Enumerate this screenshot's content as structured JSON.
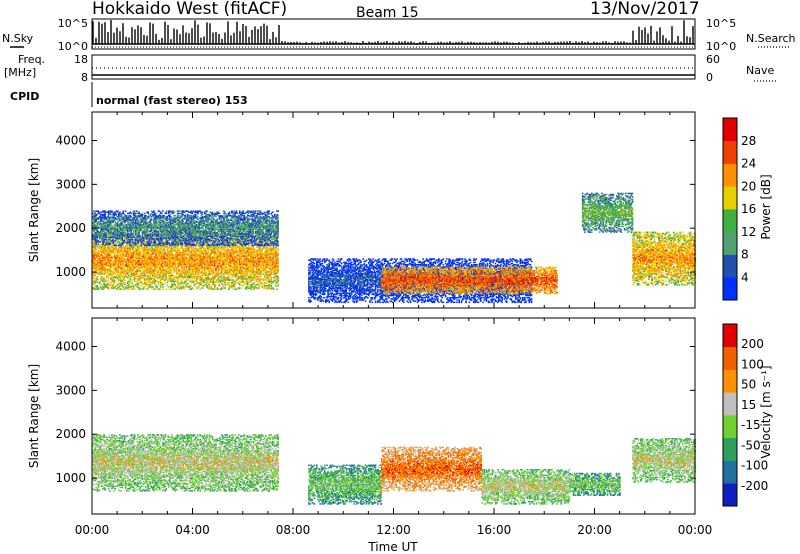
{
  "header": {
    "title": "Hokkaido West (fitACF)",
    "beam": "Beam 15",
    "date": "13/Nov/2017"
  },
  "top_panels": {
    "nsky_label": "N.Sky",
    "nsky_ticks": [
      "10^5",
      "10^0"
    ],
    "nsearch_label": "N.Search",
    "nsearch_ticks": [
      "10^5",
      "10^0"
    ],
    "freq_label": "Freq.",
    "freq_unit": "[MHz]",
    "freq_ticks": [
      "18",
      "8"
    ],
    "nave_label": "Nave",
    "nave_ticks": [
      "60",
      "0"
    ],
    "cpid_label": "CPID",
    "cpid_text": "normal (fast stereo) 153"
  },
  "chart_data": [
    {
      "type": "heatmap",
      "name": "power",
      "ylabel": "Slant Range [km]",
      "y_ticks": [
        "1000",
        "2000",
        "3000",
        "4000"
      ],
      "y_tick_values": [
        1000,
        2000,
        3000,
        4000
      ],
      "ylim": [
        180,
        4650
      ],
      "x_ticks": [
        "00:00",
        "04:00",
        "08:00",
        "12:00",
        "16:00",
        "20:00",
        "00:00"
      ],
      "xlim_hours": [
        0,
        24
      ],
      "colorbar_label": "Power [dB]",
      "colorbar_ticks": [
        "4",
        "8",
        "12",
        "16",
        "20",
        "24",
        "28"
      ],
      "colorbar_colors": [
        "#0030ff",
        "#2050b0",
        "#50a070",
        "#40b040",
        "#e8d000",
        "#ff9000",
        "#f04000",
        "#e00000"
      ],
      "regions": [
        {
          "t": [
            0.0,
            7.4
          ],
          "r": [
            600,
            1900
          ],
          "level": 5
        },
        {
          "t": [
            0.0,
            7.4
          ],
          "r": [
            1600,
            2400
          ],
          "level": 2
        },
        {
          "t": [
            8.6,
            17.5
          ],
          "r": [
            300,
            1300
          ],
          "level": 1
        },
        {
          "t": [
            11.5,
            18.5
          ],
          "r": [
            500,
            1100
          ],
          "level": 6
        },
        {
          "t": [
            19.5,
            21.5
          ],
          "r": [
            1900,
            2800
          ],
          "level": 3
        },
        {
          "t": [
            21.5,
            24.0
          ],
          "r": [
            700,
            1900
          ],
          "level": 5
        }
      ]
    },
    {
      "type": "heatmap",
      "name": "velocity",
      "ylabel": "Slant Range [km]",
      "y_ticks": [
        "1000",
        "2000",
        "3000",
        "4000"
      ],
      "y_tick_values": [
        1000,
        2000,
        3000,
        4000
      ],
      "ylim": [
        180,
        4650
      ],
      "x_ticks": [
        "00:00",
        "04:00",
        "08:00",
        "12:00",
        "16:00",
        "20:00",
        "00:00"
      ],
      "xlim_hours": [
        0,
        24
      ],
      "xlabel": "Time UT",
      "colorbar_label": "Velocity [m s⁻¹]",
      "colorbar_ticks": [
        "200",
        "100",
        "50",
        "15",
        "-15",
        "-50",
        "-100",
        "-200"
      ],
      "colorbar_colors": [
        "#1020c0",
        "#2070a0",
        "#30a060",
        "#70d030",
        "#c0c0c0",
        "#ff9000",
        "#f06000",
        "#e00000"
      ],
      "regions": [
        {
          "t": [
            0.0,
            7.4
          ],
          "r": [
            700,
            2000
          ],
          "level": 4
        },
        {
          "t": [
            8.6,
            11.5
          ],
          "r": [
            400,
            1300
          ],
          "level": 3
        },
        {
          "t": [
            11.5,
            15.5
          ],
          "r": [
            700,
            1700
          ],
          "level": 6
        },
        {
          "t": [
            15.5,
            19.0
          ],
          "r": [
            400,
            1200
          ],
          "level": 4
        },
        {
          "t": [
            19.0,
            21.0
          ],
          "r": [
            600,
            1100
          ],
          "level": 3
        },
        {
          "t": [
            21.5,
            24.0
          ],
          "r": [
            900,
            1900
          ],
          "level": 4
        }
      ]
    }
  ]
}
